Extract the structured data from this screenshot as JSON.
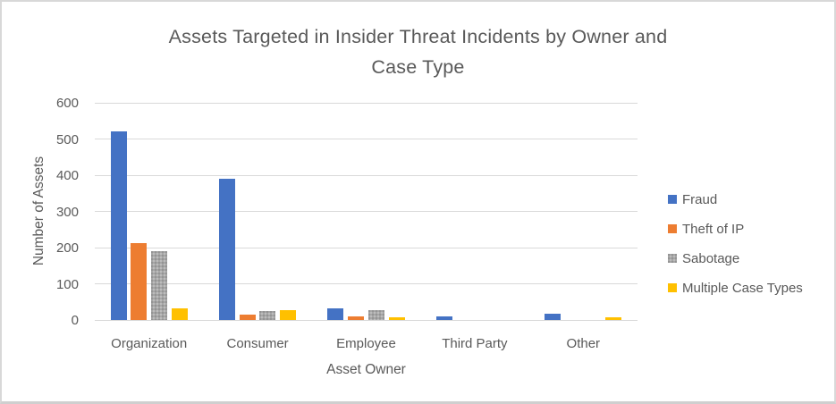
{
  "chart_data": {
    "type": "bar",
    "title": "Assets Targeted in Insider Threat Incidents by Owner and Case Type",
    "title_lines": [
      "Assets Targeted in Insider Threat Incidents by Owner and",
      "Case Type"
    ],
    "xlabel": "Asset Owner",
    "ylabel": "Number of Assets",
    "categories": [
      "Organization",
      "Consumer",
      "Employee",
      "Third Party",
      "Other"
    ],
    "series": [
      {
        "name": "Fraud",
        "color": "#4472C4",
        "pattern": false,
        "values": [
          520,
          390,
          31,
          9,
          17
        ]
      },
      {
        "name": "Theft of IP",
        "color": "#ED7D31",
        "pattern": false,
        "values": [
          212,
          14,
          9,
          0,
          0
        ]
      },
      {
        "name": "Sabotage",
        "color": "#A6A6A6",
        "pattern": true,
        "values": [
          190,
          25,
          26,
          0,
          0
        ]
      },
      {
        "name": "Multiple Case Types",
        "color": "#FFC000",
        "pattern": false,
        "values": [
          32,
          27,
          8,
          0,
          7
        ]
      }
    ],
    "ylim": [
      0,
      600
    ],
    "y_ticks": [
      0,
      100,
      200,
      300,
      400,
      500,
      600
    ],
    "grid": true,
    "legend_position": "right",
    "text_color": "#595959",
    "grid_color": "#D9D9D9",
    "background_color": "#FFFFFF"
  }
}
